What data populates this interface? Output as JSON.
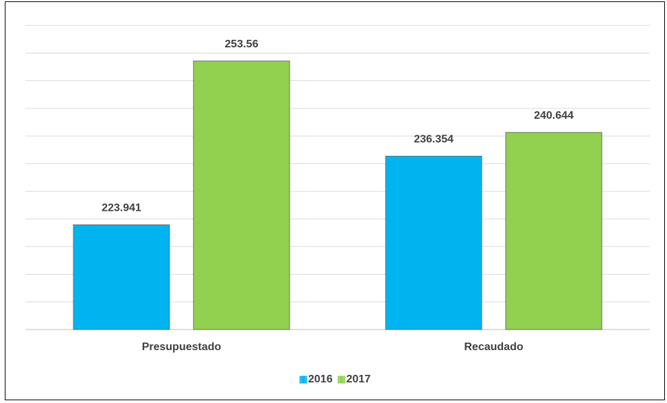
{
  "chart_data": {
    "type": "bar",
    "categories": [
      "Presupuestado",
      "Recaudado"
    ],
    "series": [
      {
        "name": "2016",
        "color": "#00b4f0",
        "values": [
          223.941,
          236.354
        ]
      },
      {
        "name": "2017",
        "color": "#92d050",
        "values": [
          253.56,
          240.644
        ]
      }
    ],
    "ylim": [
      205,
      260
    ],
    "yticks": [
      205,
      210,
      215,
      220,
      225,
      230,
      235,
      240,
      245,
      250,
      255,
      260
    ],
    "grid": true,
    "legend": "bottom"
  }
}
